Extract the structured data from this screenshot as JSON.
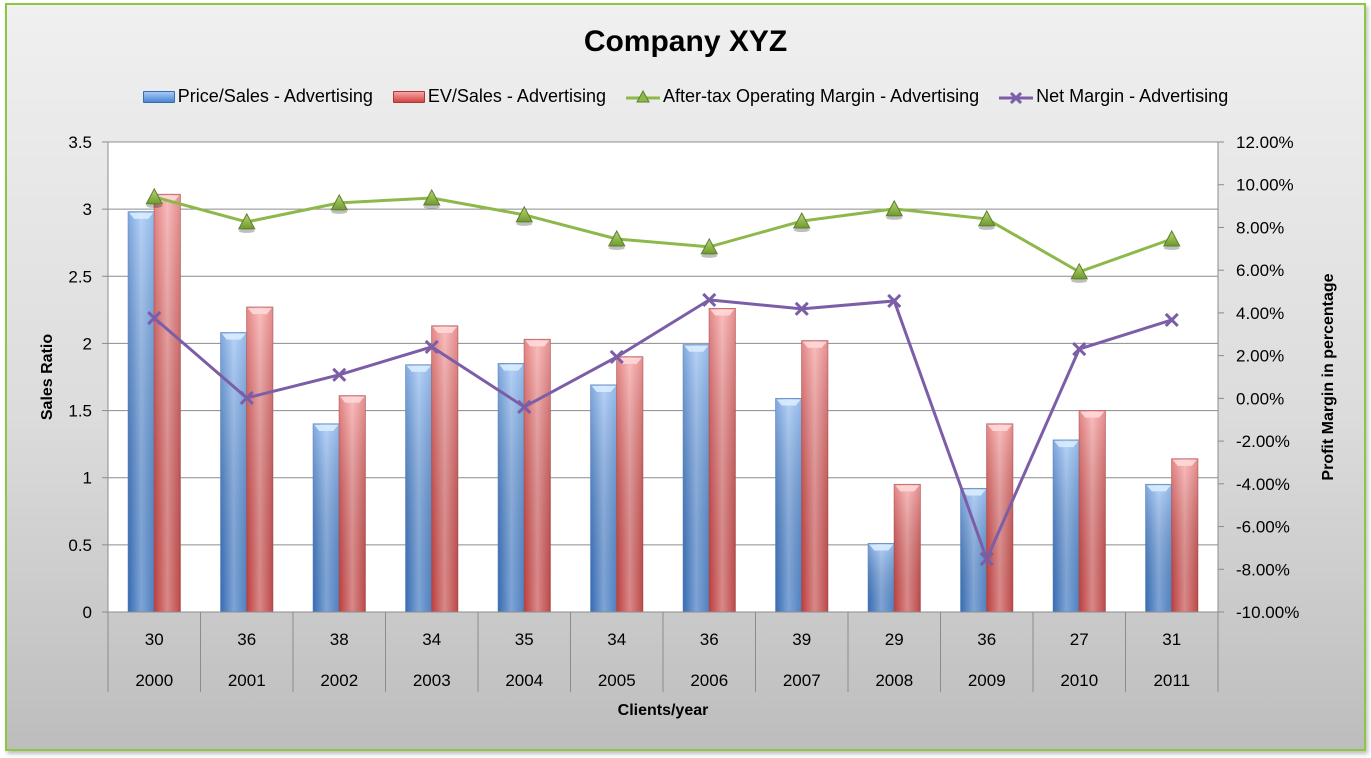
{
  "chart": {
    "title": "Company XYZ",
    "legend": [
      {
        "label": "Price/Sales  - Advertising",
        "icon": "blue-bar-swatch",
        "color": "#4a86d3"
      },
      {
        "label": "EV/Sales  - Advertising",
        "icon": "red-bar-swatch",
        "color": "#d54545"
      },
      {
        "label": "After-tax Operating Margin  - Advertising",
        "icon": "green-triangle-line",
        "color": "#8db84a"
      },
      {
        "label": "Net Margin  - Advertising",
        "icon": "purple-x-line",
        "color": "#7b5ea7"
      }
    ],
    "left_axis_title": "Sales Ratio",
    "right_axis_title": "Profit Margin in percentage",
    "x_axis_title": "Clients/year",
    "left_ticks": [
      "0",
      "0.5",
      "1",
      "1.5",
      "2",
      "2.5",
      "3",
      "3.5"
    ],
    "right_ticks": [
      "-10.00%",
      "-8.00%",
      "-6.00%",
      "-4.00%",
      "-2.00%",
      "0.00%",
      "2.00%",
      "4.00%",
      "6.00%",
      "8.00%",
      "10.00%",
      "12.00%"
    ],
    "clients": [
      "30",
      "36",
      "38",
      "34",
      "35",
      "34",
      "36",
      "39",
      "29",
      "36",
      "27",
      "31"
    ],
    "years": [
      "2000",
      "2001",
      "2002",
      "2003",
      "2004",
      "2005",
      "2006",
      "2007",
      "2008",
      "2009",
      "2010",
      "2011"
    ],
    "frame_color": "#8dc63f"
  },
  "chart_data": {
    "type": "bar",
    "title": "Company XYZ",
    "xlabel": "Clients/year",
    "ylabel": "Sales Ratio",
    "y2label": "Profit Margin in percentage",
    "ylim": [
      0,
      3.5
    ],
    "y2lim": [
      -10,
      12
    ],
    "grid": true,
    "legend_position": "top",
    "categories": [
      "30 / 2000",
      "36 / 2001",
      "38 / 2002",
      "34 / 2003",
      "35 / 2004",
      "34 / 2005",
      "36 / 2006",
      "39 / 2007",
      "29 / 2008",
      "36 / 2009",
      "27 / 2010",
      "31 / 2011"
    ],
    "series": [
      {
        "name": "Price/Sales  - Advertising",
        "type": "bar",
        "axis": "left",
        "values": [
          2.98,
          2.08,
          1.4,
          1.84,
          1.85,
          1.69,
          1.99,
          1.59,
          0.51,
          0.92,
          1.28,
          0.95
        ]
      },
      {
        "name": "EV/Sales  - Advertising",
        "type": "bar",
        "axis": "left",
        "values": [
          3.11,
          2.27,
          1.61,
          2.13,
          2.03,
          1.9,
          2.26,
          2.02,
          0.95,
          1.4,
          1.5,
          1.14
        ]
      },
      {
        "name": "After-tax Operating Margin  - Advertising",
        "type": "line",
        "axis": "right",
        "unit": "%",
        "values": [
          9.43,
          8.26,
          9.15,
          9.38,
          8.59,
          7.46,
          7.09,
          8.3,
          8.87,
          8.4,
          5.92,
          7.46
        ]
      },
      {
        "name": "Net Margin  - Advertising",
        "type": "line",
        "axis": "right",
        "unit": "%",
        "values": [
          3.76,
          0.02,
          1.1,
          2.41,
          -0.4,
          1.94,
          4.61,
          4.19,
          4.56,
          -7.52,
          2.31,
          3.67
        ]
      }
    ]
  }
}
